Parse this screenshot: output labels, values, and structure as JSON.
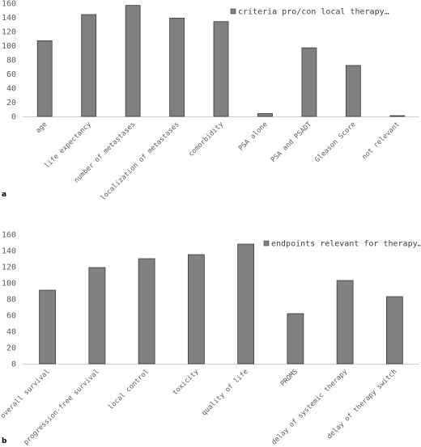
{
  "chart_data": [
    {
      "type": "bar",
      "panel_label": "a",
      "categories": [
        "age",
        "life expectancy",
        "number of metastases",
        "localization of metastases",
        "comorbidity",
        "PSA alone",
        "PSA and PSADT",
        "Gleason Score",
        "not relevant"
      ],
      "series": [
        {
          "name": "criteria pro/con local therapy…",
          "values": [
            107,
            144,
            157,
            139,
            134,
            4,
            97,
            72,
            1
          ],
          "color": "#808080"
        }
      ],
      "ylim": [
        0,
        160
      ],
      "yticks": [
        "0",
        "20",
        "40",
        "60",
        "80",
        "100",
        "120",
        "140",
        "160"
      ],
      "grid": false,
      "legend": "top-right"
    },
    {
      "type": "bar",
      "panel_label": "b",
      "categories": [
        "overall survival",
        "progression-free survival",
        "local control",
        "toxicity",
        "quality of life",
        "PROMS",
        "delay of systemic therapy",
        "delay of therapy switch"
      ],
      "series": [
        {
          "name": "endpoints relevant for therapy…",
          "values": [
            91,
            119,
            130,
            135,
            148,
            62,
            103,
            83
          ],
          "color": "#808080"
        }
      ],
      "ylim": [
        0,
        160
      ],
      "yticks": [
        "0",
        "20",
        "40",
        "60",
        "80",
        "100",
        "120",
        "140",
        "160"
      ],
      "grid": false,
      "legend": "top-right"
    }
  ]
}
